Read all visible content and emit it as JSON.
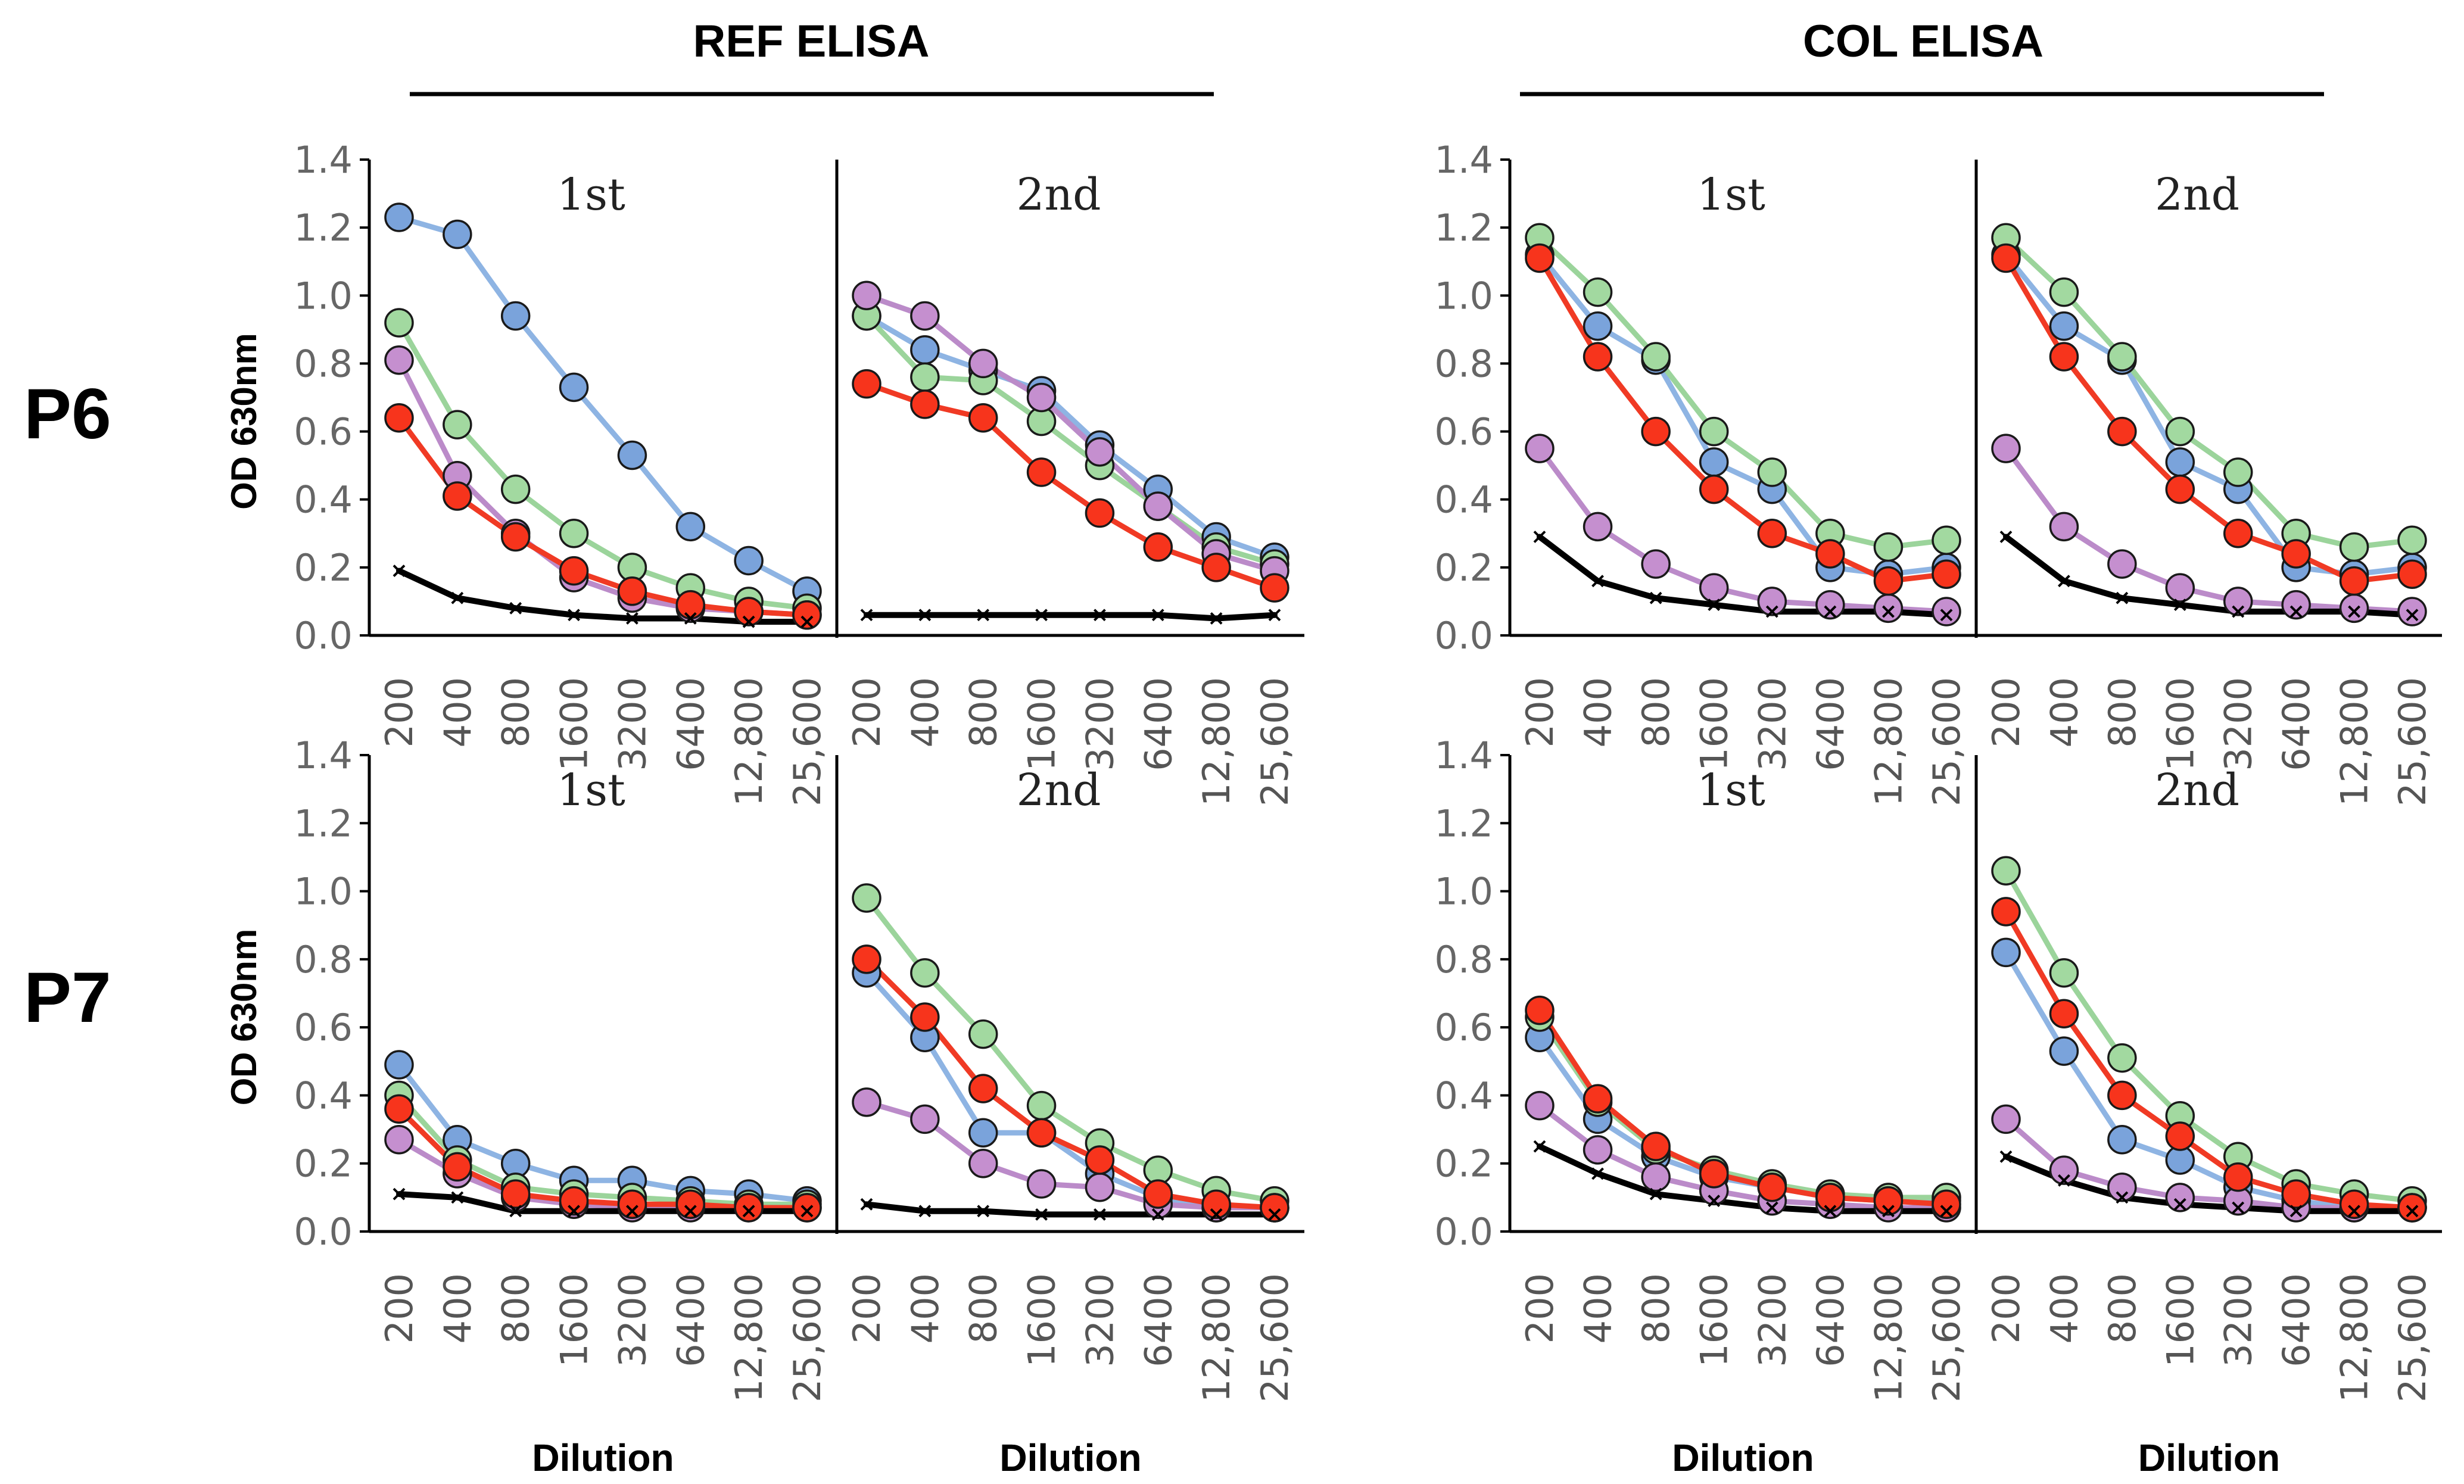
{
  "figure": {
    "groups": [
      "REF ELISA",
      "COL ELISA"
    ],
    "rows": [
      "P6",
      "P7"
    ],
    "series_colors": {
      "blue": "#8EB4E3",
      "green": "#9BD49B",
      "purple": "#BB8BC9",
      "red": "#F03A24",
      "control": "#000000"
    },
    "marker_fill": {
      "blue": "#7AA3DB",
      "green": "#A2D9A0",
      "purple": "#C58FCF",
      "red": "#F7341C"
    }
  },
  "chart_data": [
    {
      "type": "line",
      "group": "REF ELISA",
      "row": "P6",
      "ylabel": "OD 630nm",
      "ylim": [
        0,
        1.4
      ],
      "yticks": [
        "0.0",
        "0.2",
        "0.4",
        "0.6",
        "0.8",
        "1.0",
        "1.2",
        "1.4"
      ],
      "xlabel": "Dilution",
      "categories": [
        "200",
        "400",
        "800",
        "1600",
        "3200",
        "6400",
        "12,800",
        "25,600"
      ],
      "panels": [
        {
          "title": "1st",
          "series": [
            {
              "name": "blue",
              "values": [
                1.23,
                1.18,
                0.94,
                0.73,
                0.53,
                0.32,
                0.22,
                0.13
              ]
            },
            {
              "name": "green",
              "values": [
                0.92,
                0.62,
                0.43,
                0.3,
                0.2,
                0.14,
                0.1,
                0.08
              ]
            },
            {
              "name": "purple",
              "values": [
                0.81,
                0.47,
                0.3,
                0.17,
                0.11,
                0.08,
                0.07,
                0.06
              ]
            },
            {
              "name": "red",
              "values": [
                0.64,
                0.41,
                0.29,
                0.19,
                0.13,
                0.09,
                0.07,
                0.06
              ]
            },
            {
              "name": "control",
              "values": [
                0.19,
                0.11,
                0.08,
                0.06,
                0.05,
                0.05,
                0.04,
                0.04
              ]
            }
          ]
        },
        {
          "title": "2nd",
          "series": [
            {
              "name": "blue",
              "values": [
                0.94,
                0.84,
                0.78,
                0.72,
                0.56,
                0.43,
                0.29,
                0.23
              ]
            },
            {
              "name": "green",
              "values": [
                0.94,
                0.76,
                0.75,
                0.63,
                0.5,
                0.38,
                0.26,
                0.21
              ]
            },
            {
              "name": "purple",
              "values": [
                1.0,
                0.94,
                0.8,
                0.7,
                0.54,
                0.38,
                0.24,
                0.19
              ]
            },
            {
              "name": "red",
              "values": [
                0.74,
                0.68,
                0.64,
                0.48,
                0.36,
                0.26,
                0.2,
                0.14
              ]
            },
            {
              "name": "control",
              "values": [
                0.06,
                0.06,
                0.06,
                0.06,
                0.06,
                0.06,
                0.05,
                0.06
              ]
            }
          ]
        }
      ]
    },
    {
      "type": "line",
      "group": "COL ELISA",
      "row": "P6",
      "ylabel": "",
      "ylim": [
        0,
        1.4
      ],
      "yticks": [
        "0.0",
        "0.2",
        "0.4",
        "0.6",
        "0.8",
        "1.0",
        "1.2",
        "1.4"
      ],
      "xlabel": "Dilution",
      "categories": [
        "200",
        "400",
        "800",
        "1600",
        "3200",
        "6400",
        "12,800",
        "25,600"
      ],
      "panels": [
        {
          "title": "1st",
          "series": [
            {
              "name": "blue",
              "values": [
                1.12,
                0.91,
                0.81,
                0.51,
                0.43,
                0.2,
                0.18,
                0.2
              ]
            },
            {
              "name": "green",
              "values": [
                1.17,
                1.01,
                0.82,
                0.6,
                0.48,
                0.3,
                0.26,
                0.28
              ]
            },
            {
              "name": "purple",
              "values": [
                0.55,
                0.32,
                0.21,
                0.14,
                0.1,
                0.09,
                0.08,
                0.07
              ]
            },
            {
              "name": "red",
              "values": [
                1.11,
                0.82,
                0.6,
                0.43,
                0.3,
                0.24,
                0.16,
                0.18
              ]
            },
            {
              "name": "control",
              "values": [
                0.29,
                0.16,
                0.11,
                0.09,
                0.07,
                0.07,
                0.07,
                0.06
              ]
            }
          ]
        },
        {
          "title": "2nd",
          "series": [
            {
              "name": "blue",
              "values": [
                1.12,
                0.91,
                0.81,
                0.51,
                0.43,
                0.2,
                0.18,
                0.2
              ]
            },
            {
              "name": "green",
              "values": [
                1.17,
                1.01,
                0.82,
                0.6,
                0.48,
                0.3,
                0.26,
                0.28
              ]
            },
            {
              "name": "purple",
              "values": [
                0.55,
                0.32,
                0.21,
                0.14,
                0.1,
                0.09,
                0.08,
                0.07
              ]
            },
            {
              "name": "red",
              "values": [
                1.11,
                0.82,
                0.6,
                0.43,
                0.3,
                0.24,
                0.16,
                0.18
              ]
            },
            {
              "name": "control",
              "values": [
                0.29,
                0.16,
                0.11,
                0.09,
                0.07,
                0.07,
                0.07,
                0.06
              ]
            }
          ]
        }
      ]
    },
    {
      "type": "line",
      "group": "REF ELISA",
      "row": "P7",
      "ylabel": "OD 630nm",
      "ylim": [
        0,
        1.4
      ],
      "yticks": [
        "0.0",
        "0.2",
        "0.4",
        "0.6",
        "0.8",
        "1.0",
        "1.2",
        "1.4"
      ],
      "xlabel": "Dilution",
      "categories": [
        "200",
        "400",
        "800",
        "1600",
        "3200",
        "6400",
        "12,800",
        "25,600"
      ],
      "panels": [
        {
          "title": "1st",
          "series": [
            {
              "name": "blue",
              "values": [
                0.49,
                0.27,
                0.2,
                0.15,
                0.15,
                0.12,
                0.11,
                0.09
              ]
            },
            {
              "name": "green",
              "values": [
                0.4,
                0.21,
                0.13,
                0.11,
                0.1,
                0.09,
                0.08,
                0.08
              ]
            },
            {
              "name": "purple",
              "values": [
                0.27,
                0.17,
                0.1,
                0.08,
                0.07,
                0.07,
                0.07,
                0.07
              ]
            },
            {
              "name": "red",
              "values": [
                0.36,
                0.19,
                0.11,
                0.09,
                0.08,
                0.08,
                0.07,
                0.07
              ]
            },
            {
              "name": "control",
              "values": [
                0.11,
                0.1,
                0.06,
                0.06,
                0.06,
                0.06,
                0.06,
                0.06
              ]
            }
          ]
        },
        {
          "title": "2nd",
          "series": [
            {
              "name": "blue",
              "values": [
                0.76,
                0.57,
                0.29,
                0.29,
                0.17,
                0.1,
                0.07,
                0.07
              ]
            },
            {
              "name": "green",
              "values": [
                0.98,
                0.76,
                0.58,
                0.37,
                0.26,
                0.18,
                0.12,
                0.09
              ]
            },
            {
              "name": "purple",
              "values": [
                0.38,
                0.33,
                0.2,
                0.14,
                0.13,
                0.08,
                0.07,
                0.07
              ]
            },
            {
              "name": "red",
              "values": [
                0.8,
                0.63,
                0.42,
                0.29,
                0.21,
                0.11,
                0.08,
                0.07
              ]
            },
            {
              "name": "control",
              "values": [
                0.08,
                0.06,
                0.06,
                0.05,
                0.05,
                0.05,
                0.05,
                0.05
              ]
            }
          ]
        }
      ]
    },
    {
      "type": "line",
      "group": "COL ELISA",
      "row": "P7",
      "ylabel": "",
      "ylim": [
        0,
        1.4
      ],
      "yticks": [
        "0.0",
        "0.2",
        "0.4",
        "0.6",
        "0.8",
        "1.0",
        "1.2",
        "1.4"
      ],
      "xlabel": "Dilution",
      "categories": [
        "200",
        "400",
        "800",
        "1600",
        "3200",
        "6400",
        "12,800",
        "25,600"
      ],
      "panels": [
        {
          "title": "1st",
          "series": [
            {
              "name": "blue",
              "values": [
                0.57,
                0.33,
                0.22,
                0.16,
                0.13,
                0.1,
                0.09,
                0.09
              ]
            },
            {
              "name": "green",
              "values": [
                0.63,
                0.38,
                0.24,
                0.18,
                0.14,
                0.11,
                0.1,
                0.1
              ]
            },
            {
              "name": "purple",
              "values": [
                0.37,
                0.24,
                0.16,
                0.12,
                0.09,
                0.08,
                0.07,
                0.07
              ]
            },
            {
              "name": "red",
              "values": [
                0.65,
                0.39,
                0.25,
                0.17,
                0.13,
                0.1,
                0.09,
                0.08
              ]
            },
            {
              "name": "control",
              "values": [
                0.25,
                0.17,
                0.11,
                0.09,
                0.07,
                0.06,
                0.06,
                0.06
              ]
            }
          ]
        },
        {
          "title": "2nd",
          "series": [
            {
              "name": "blue",
              "values": [
                0.82,
                0.53,
                0.27,
                0.21,
                0.13,
                0.09,
                0.07,
                0.07
              ]
            },
            {
              "name": "green",
              "values": [
                1.06,
                0.76,
                0.51,
                0.34,
                0.22,
                0.14,
                0.11,
                0.09
              ]
            },
            {
              "name": "purple",
              "values": [
                0.33,
                0.18,
                0.13,
                0.1,
                0.09,
                0.07,
                0.07,
                0.07
              ]
            },
            {
              "name": "red",
              "values": [
                0.94,
                0.64,
                0.4,
                0.28,
                0.16,
                0.11,
                0.08,
                0.07
              ]
            },
            {
              "name": "control",
              "values": [
                0.22,
                0.15,
                0.1,
                0.08,
                0.07,
                0.06,
                0.06,
                0.06
              ]
            }
          ]
        }
      ]
    }
  ]
}
